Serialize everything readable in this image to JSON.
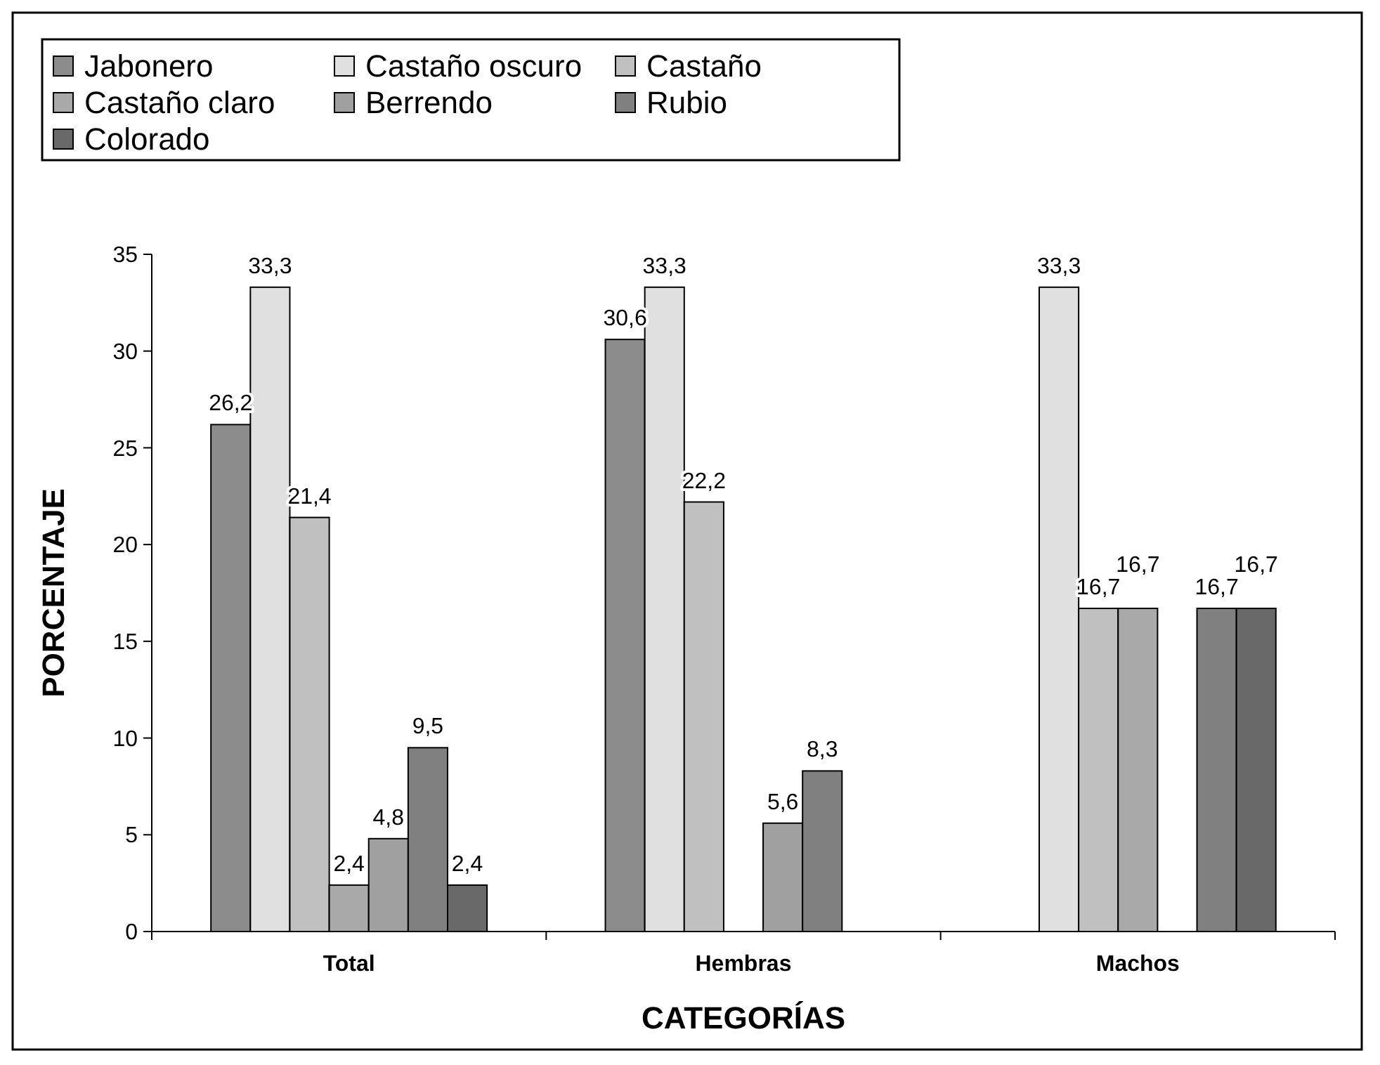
{
  "chart_data": {
    "type": "bar",
    "xlabel": "CATEGORÍAS",
    "ylabel": "PORCENTAJE",
    "categories": [
      "Total",
      "Hembras",
      "Machos"
    ],
    "series": [
      {
        "name": "Jabonero",
        "color": "#8c8c8c",
        "values": [
          26.2,
          30.6,
          null
        ],
        "value_labels": [
          "26,2",
          "30,6",
          null
        ]
      },
      {
        "name": "Castaño oscuro",
        "color": "#e0e0e0",
        "values": [
          33.3,
          33.3,
          33.3
        ],
        "value_labels": [
          "33,3",
          "33,3",
          "33,3"
        ]
      },
      {
        "name": "Castaño",
        "color": "#c0c0c0",
        "values": [
          21.4,
          22.2,
          16.7
        ],
        "value_labels": [
          "21,4",
          "22,2",
          "16,7"
        ]
      },
      {
        "name": "Castaño claro",
        "color": "#a9a9a9",
        "values": [
          2.4,
          null,
          16.7
        ],
        "value_labels": [
          "2,4",
          null,
          "16,7"
        ]
      },
      {
        "name": "Berrendo",
        "color": "#a0a0a0",
        "values": [
          4.8,
          5.6,
          null
        ],
        "value_labels": [
          "4,8",
          "5,6",
          null
        ]
      },
      {
        "name": "Rubio",
        "color": "#808080",
        "values": [
          9.5,
          8.3,
          16.7
        ],
        "value_labels": [
          "9,5",
          "8,3",
          "16,7"
        ]
      },
      {
        "name": "Colorado",
        "color": "#696969",
        "values": [
          2.4,
          null,
          16.7
        ],
        "value_labels": [
          "2,4",
          null,
          "16,7"
        ]
      }
    ],
    "ylim": [
      0,
      35
    ],
    "yticks": [
      0,
      5,
      10,
      15,
      20,
      25,
      30,
      35
    ],
    "grid": false,
    "legend": "top"
  }
}
